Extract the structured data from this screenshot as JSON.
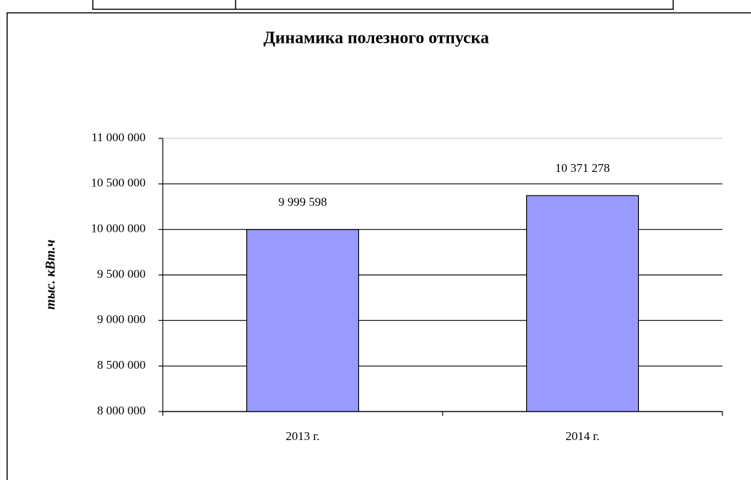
{
  "chart_data": {
    "type": "bar",
    "title": "Динамика полезного отпуска",
    "y_label": "тыс. кВт.ч",
    "categories": [
      "2013 г.",
      "2014 г."
    ],
    "values": [
      9999598,
      10371278
    ],
    "value_labels": [
      "9 999 598",
      "10 371 278"
    ],
    "color": "#9999ff",
    "ylim": [
      8000000,
      11000000
    ],
    "yticks": [
      {
        "value": 8000000,
        "label": "8 000 000"
      },
      {
        "value": 8500000,
        "label": "8 500 000"
      },
      {
        "value": 9000000,
        "label": "9 000 000"
      },
      {
        "value": 9500000,
        "label": "9 500 000"
      },
      {
        "value": 10000000,
        "label": "10 000 000"
      },
      {
        "value": 10500000,
        "label": "10 500 000"
      },
      {
        "value": 11000000,
        "label": "11 000 000"
      }
    ],
    "grid": true
  }
}
